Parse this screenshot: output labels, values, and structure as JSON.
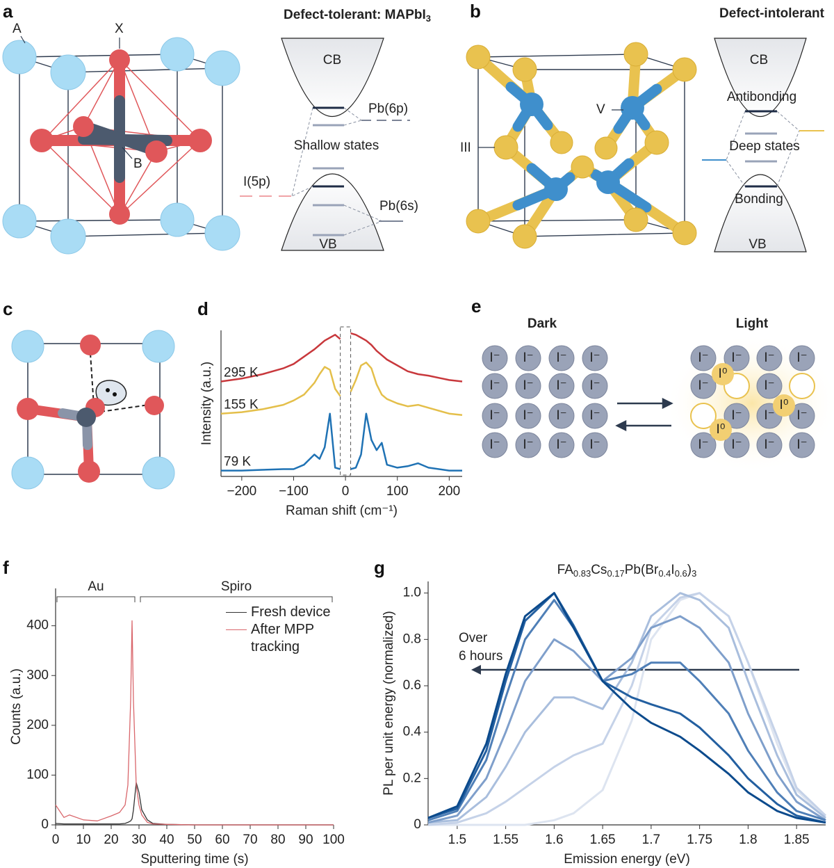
{
  "figure": {
    "a": {
      "letter": "a",
      "title": [
        "Defect-tolerant: MAPbI",
        "3"
      ],
      "atom_labels": [
        "A",
        "X",
        "B"
      ],
      "band_labels": [
        "CB",
        "Pb(6p)",
        "Shallow states",
        "I(5p)",
        "Pb(6s)",
        "VB"
      ]
    },
    "b": {
      "letter": "b",
      "title": "Defect-intolerant",
      "atom_labels": [
        "V",
        "III"
      ],
      "band_labels": [
        "CB",
        "Antibonding",
        "Deep states",
        "Bonding",
        "VB"
      ]
    },
    "c": {
      "letter": "c"
    },
    "d": {
      "letter": "d"
    },
    "e": {
      "letter": "e",
      "states": [
        "Dark",
        "Light"
      ],
      "ion": "I⁻",
      "neutral": "I⁰"
    },
    "f": {
      "letter": "f"
    },
    "g": {
      "letter": "g"
    }
  },
  "chart_data": [
    {
      "type": "line",
      "xlabel": "Raman shift (cm⁻¹)",
      "ylabel": "Intensity (a.u.)",
      "xlim": [
        -240,
        225
      ],
      "xticks": [
        {
          "value": -200,
          "label": "−200"
        },
        {
          "value": -100,
          "label": "−100"
        },
        0,
        100,
        200
      ],
      "ylim": [
        0,
        10
      ],
      "x": [
        -240,
        -200,
        -160,
        -120,
        -100,
        -80,
        -60,
        -50,
        -40,
        -30,
        -20,
        -10,
        0,
        10,
        20,
        30,
        40,
        50,
        60,
        70,
        80,
        100,
        120,
        140,
        160,
        200,
        225
      ],
      "series": [
        {
          "name": "295 K",
          "color": "#c8383c",
          "values": [
            6.5,
            6.7,
            7.0,
            7.4,
            7.7,
            8.2,
            8.7,
            9.0,
            9.3,
            9.5,
            9.7,
            9.4,
            null,
            9.8,
            9.7,
            9.5,
            9.3,
            9.0,
            8.6,
            8.3,
            8.0,
            7.6,
            7.2,
            7.0,
            6.9,
            6.6,
            6.5
          ]
        },
        {
          "name": "155 K",
          "color": "#e4bf4a",
          "values": [
            4.3,
            4.4,
            4.6,
            4.9,
            5.2,
            5.6,
            6.4,
            7.0,
            7.5,
            7.3,
            6.0,
            5.5,
            null,
            5.8,
            6.6,
            7.6,
            7.8,
            7.4,
            6.3,
            5.6,
            5.3,
            5.0,
            4.8,
            4.9,
            4.7,
            4.3,
            4.2
          ]
        },
        {
          "name": "79 K",
          "color": "#1f72b4",
          "values": [
            0.4,
            0.4,
            0.45,
            0.5,
            0.5,
            0.8,
            1.5,
            1.2,
            2.0,
            4.3,
            0.6,
            0.5,
            null,
            0.5,
            0.6,
            1.5,
            4.3,
            2.5,
            1.8,
            2.3,
            0.8,
            0.6,
            0.7,
            0.9,
            0.6,
            0.4,
            0.4
          ]
        }
      ]
    },
    {
      "type": "line",
      "xlabel": "Sputtering time (s)",
      "ylabel": "Counts (a.u.)",
      "xlim": [
        0,
        100
      ],
      "xticks": [
        0,
        10,
        20,
        30,
        40,
        50,
        60,
        70,
        80,
        90,
        100
      ],
      "ylim": [
        0,
        475
      ],
      "yticks": [
        0,
        100,
        200,
        300,
        400
      ],
      "legend": "upper right",
      "annotations": [
        {
          "text": "Au",
          "x": [
            0,
            29
          ]
        },
        {
          "text": "Spiro",
          "x": [
            30,
            100
          ]
        }
      ],
      "x": [
        0,
        3,
        5,
        10,
        15,
        20,
        23,
        25,
        26,
        27,
        27.5,
        28,
        29,
        30,
        31,
        33,
        35,
        40,
        50,
        60,
        70,
        80,
        90,
        100
      ],
      "series": [
        {
          "name": "Fresh device",
          "color": "#333333",
          "values": [
            3,
            2,
            2,
            2,
            2,
            2,
            2,
            3,
            5,
            8,
            12,
            30,
            85,
            65,
            30,
            10,
            3,
            1,
            0,
            0,
            0,
            0,
            0,
            0
          ]
        },
        {
          "name": "After MPP tracking",
          "color": "#d9666b",
          "values": [
            40,
            15,
            20,
            10,
            8,
            18,
            25,
            40,
            80,
            250,
            410,
            250,
            80,
            40,
            20,
            5,
            2,
            1,
            0,
            0,
            0,
            0,
            0,
            0
          ]
        }
      ]
    },
    {
      "type": "line",
      "title_parts": [
        "FA",
        "0.83",
        "Cs",
        "0.17",
        "Pb(Br",
        "0.4",
        "I",
        "0.6",
        ")",
        "3"
      ],
      "xlabel": "Emission energy (eV)",
      "ylabel": "PL per unit energy (normalized)",
      "xlim": [
        1.47,
        1.88
      ],
      "xticks": [
        1.5,
        1.55,
        1.6,
        1.65,
        1.7,
        1.75,
        1.8,
        1.85
      ],
      "ylim": [
        0,
        1.05
      ],
      "yticks": [
        0,
        0.2,
        0.4,
        0.6,
        0.8,
        {
          "value": 1,
          "label": "1.0"
        }
      ],
      "annotation": [
        "Over",
        "6 hours"
      ],
      "x": [
        1.47,
        1.5,
        1.53,
        1.55,
        1.57,
        1.6,
        1.62,
        1.65,
        1.68,
        1.7,
        1.73,
        1.75,
        1.78,
        1.8,
        1.83,
        1.85,
        1.88
      ],
      "series": [
        {
          "color": "#dde4f0",
          "values": [
            0,
            0,
            0,
            0,
            0,
            0.02,
            0.05,
            0.15,
            0.45,
            0.8,
            0.97,
            1.0,
            0.9,
            0.7,
            0.35,
            0.15,
            0.03
          ]
        },
        {
          "color": "#c5d2e8",
          "values": [
            0,
            0.01,
            0.05,
            0.1,
            0.16,
            0.25,
            0.3,
            0.35,
            0.6,
            0.85,
            0.98,
            1.0,
            0.9,
            0.7,
            0.38,
            0.16,
            0.04
          ]
        },
        {
          "color": "#a9bedd",
          "values": [
            0.01,
            0.02,
            0.12,
            0.25,
            0.4,
            0.55,
            0.55,
            0.5,
            0.7,
            0.9,
            1.0,
            0.97,
            0.85,
            0.62,
            0.3,
            0.13,
            0.03
          ]
        },
        {
          "color": "#7f9fcb",
          "values": [
            0.01,
            0.04,
            0.2,
            0.4,
            0.62,
            0.8,
            0.75,
            0.62,
            0.72,
            0.85,
            0.9,
            0.85,
            0.7,
            0.48,
            0.22,
            0.1,
            0.02
          ]
        },
        {
          "color": "#4f7fb7",
          "values": [
            0.02,
            0.06,
            0.28,
            0.55,
            0.8,
            0.97,
            0.85,
            0.62,
            0.65,
            0.7,
            0.7,
            0.62,
            0.48,
            0.32,
            0.14,
            0.06,
            0.02
          ]
        },
        {
          "color": "#235fa0",
          "values": [
            0.03,
            0.07,
            0.32,
            0.62,
            0.88,
            1.0,
            0.86,
            0.62,
            0.55,
            0.52,
            0.48,
            0.42,
            0.3,
            0.2,
            0.09,
            0.04,
            0.01
          ]
        },
        {
          "color": "#0b4a8c",
          "values": [
            0.03,
            0.08,
            0.35,
            0.65,
            0.9,
            1.0,
            0.85,
            0.62,
            0.5,
            0.44,
            0.38,
            0.32,
            0.22,
            0.14,
            0.06,
            0.03,
            0.01
          ]
        }
      ]
    }
  ]
}
